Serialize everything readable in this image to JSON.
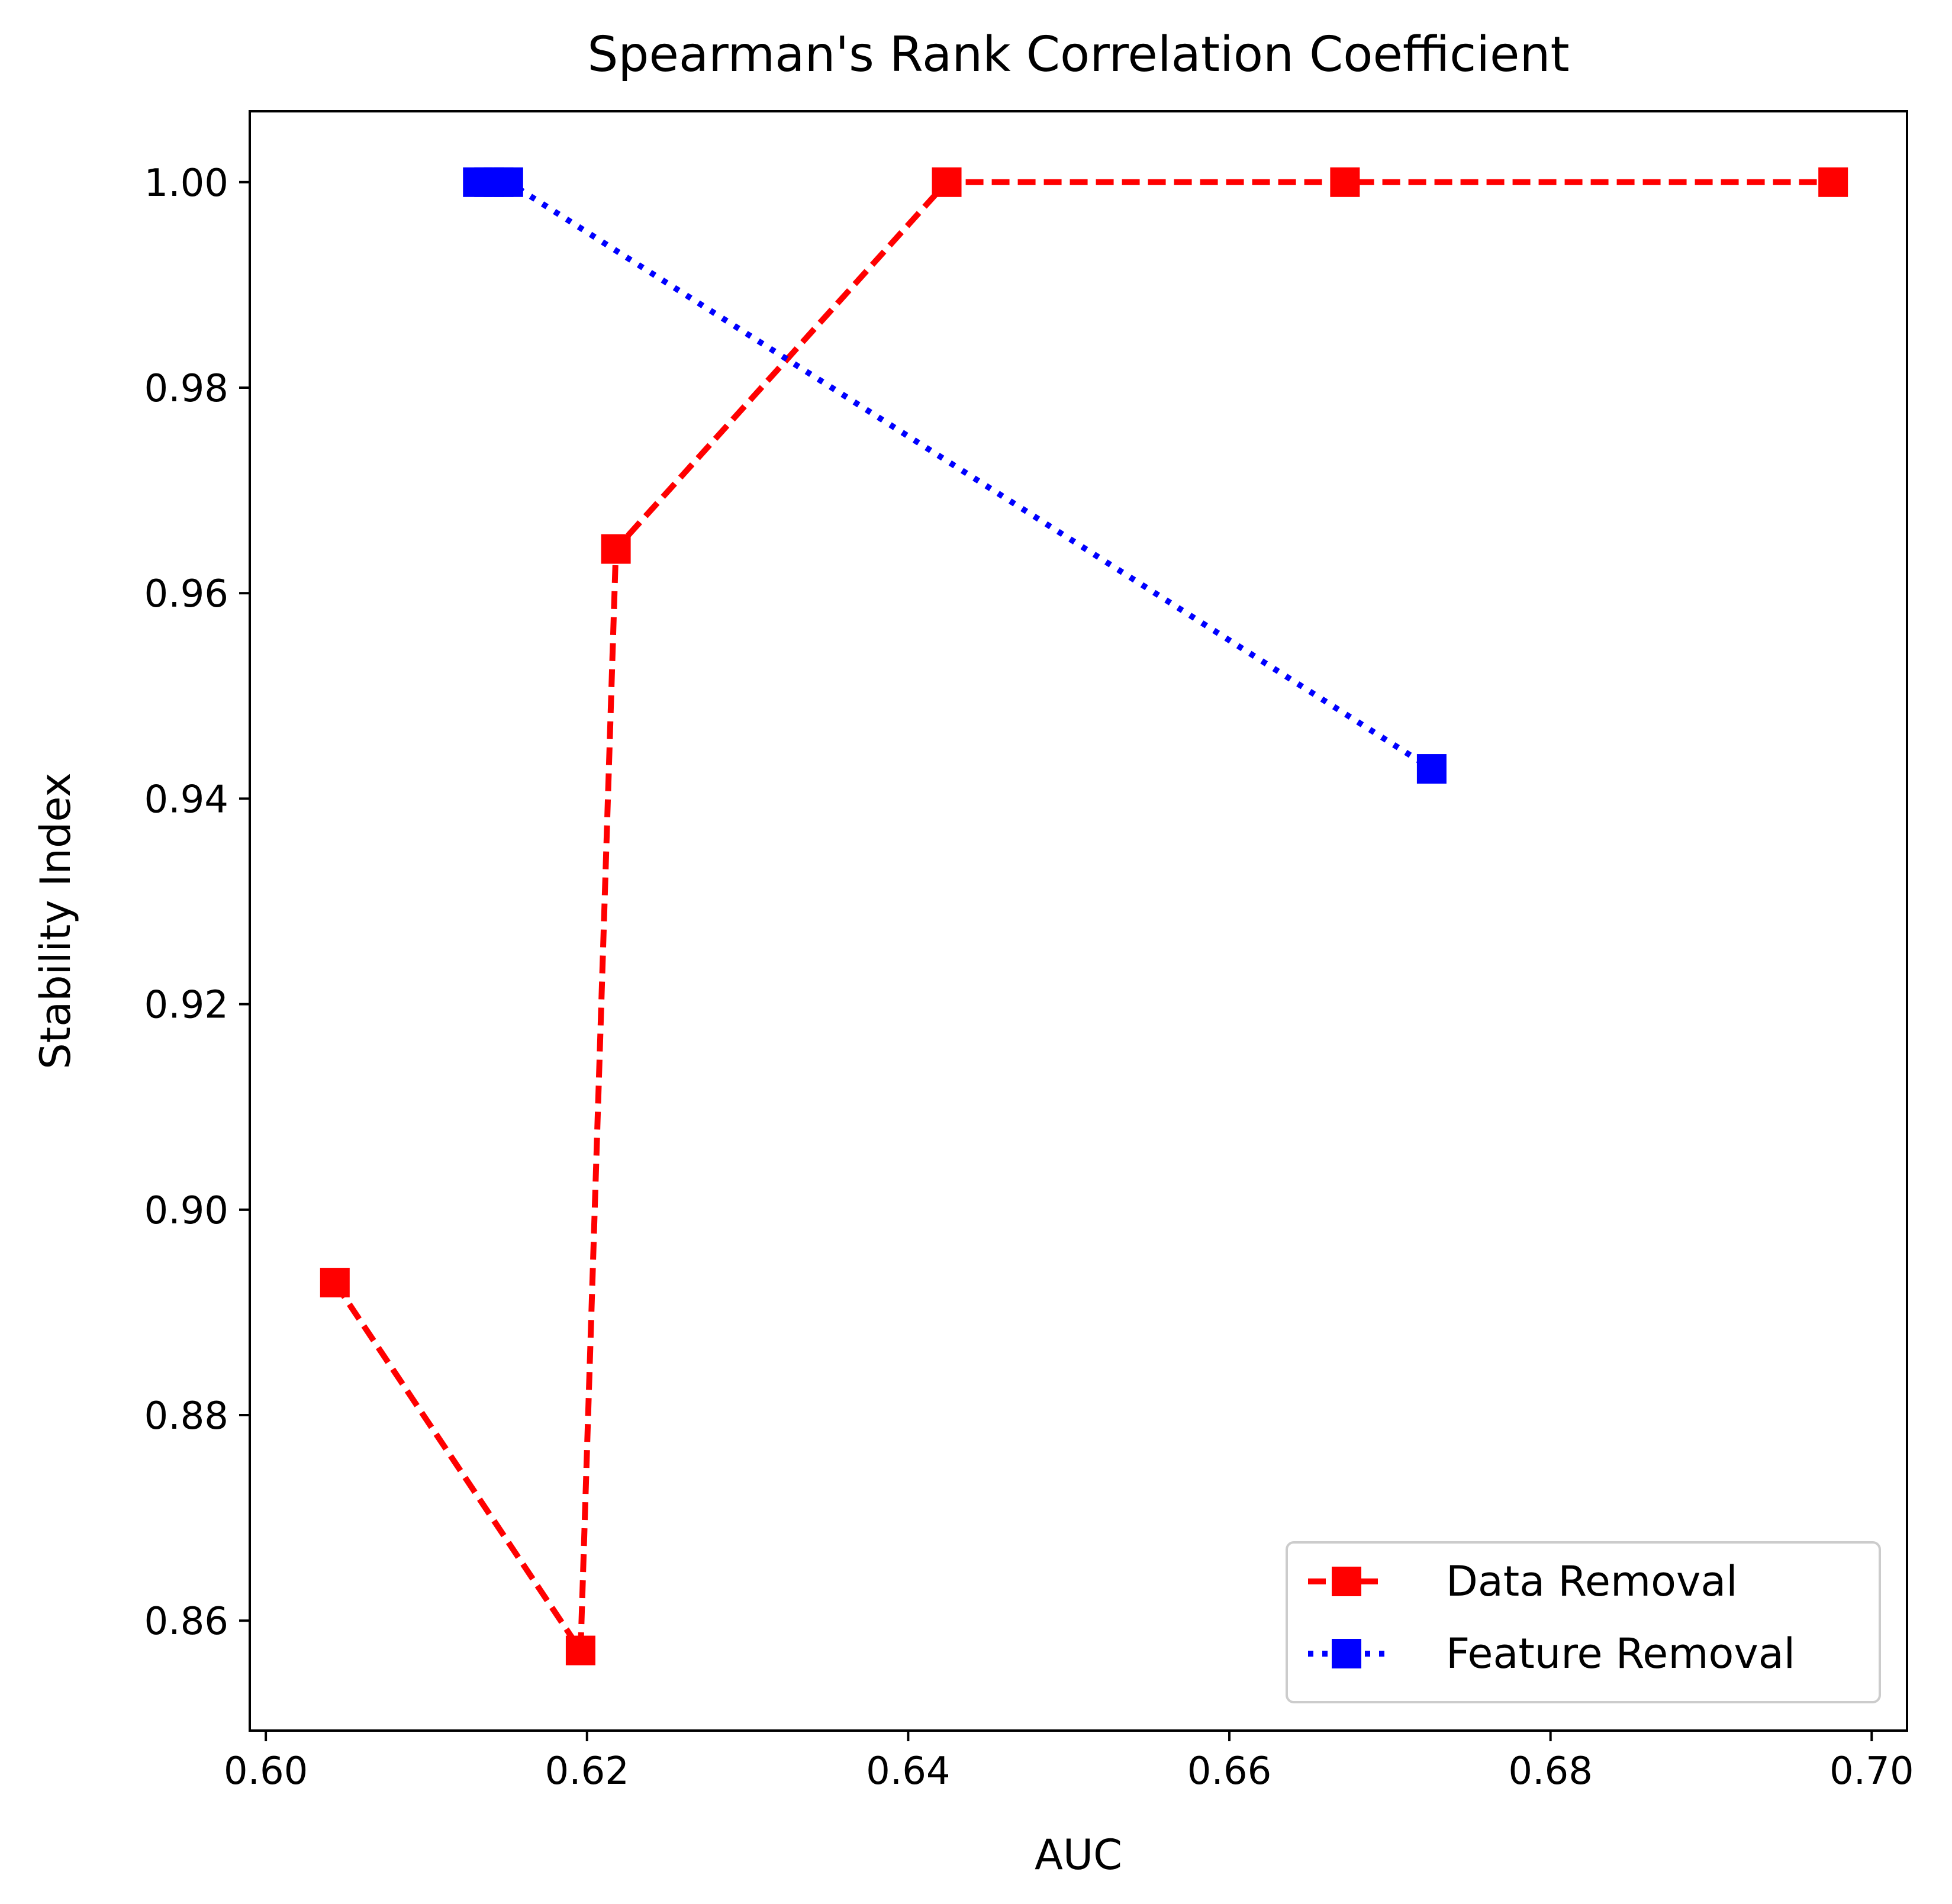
{
  "chart_data": {
    "type": "line",
    "title": "Spearman's Rank Correlation Coefficient",
    "xlabel": "AUC",
    "ylabel": "Stability Index",
    "xlim": [
      0.599,
      0.7022
    ],
    "ylim": [
      0.8493,
      1.0069
    ],
    "xticks": [
      0.6,
      0.62,
      0.64,
      0.66,
      0.68,
      0.7
    ],
    "xtick_labels": [
      "0.60",
      "0.62",
      "0.64",
      "0.66",
      "0.68",
      "0.70"
    ],
    "yticks": [
      0.86,
      0.88,
      0.9,
      0.92,
      0.94,
      0.96,
      0.98,
      1.0
    ],
    "ytick_labels": [
      "0.86",
      "0.88",
      "0.90",
      "0.92",
      "0.94",
      "0.96",
      "0.98",
      "1.00"
    ],
    "grid": false,
    "legend_position": "lower-right",
    "series": [
      {
        "name": "Data Removal",
        "color": "#ff0000",
        "linestyle": "dashed",
        "marker": "square",
        "points": [
          {
            "x": 0.6043,
            "y": 0.8929
          },
          {
            "x": 0.6196,
            "y": 0.8571
          },
          {
            "x": 0.6218,
            "y": 0.9643
          },
          {
            "x": 0.6424,
            "y": 1.0
          },
          {
            "x": 0.6672,
            "y": 1.0
          },
          {
            "x": 0.6976,
            "y": 1.0
          }
        ]
      },
      {
        "name": "Feature Removal",
        "color": "#0000ff",
        "linestyle": "dotted",
        "marker": "square",
        "points": [
          {
            "x": 0.6132,
            "y": 1.0
          },
          {
            "x": 0.6139,
            "y": 1.0
          },
          {
            "x": 0.6145,
            "y": 1.0
          },
          {
            "x": 0.6151,
            "y": 1.0
          },
          {
            "x": 0.6726,
            "y": 0.9429
          }
        ]
      }
    ]
  }
}
